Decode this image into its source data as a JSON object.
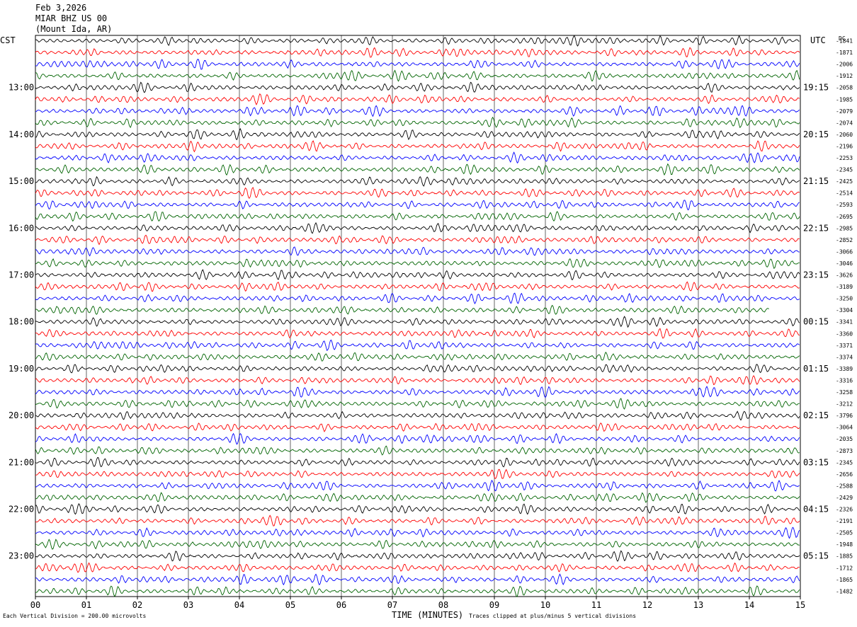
{
  "header": {
    "date": "Feb 3,2026",
    "station": "MIAR BHZ US 00",
    "location": "(Mount Ida, AR)"
  },
  "left_tz": "CST",
  "right_tz": "UTC",
  "right_col_label": "DC",
  "footer": {
    "scale_note": "Each Vertical Division =  200.00 microvolts",
    "clip_note": "Traces clipped at plus/minus 5 vertical divisions"
  },
  "colors": {
    "trace": [
      "#000000",
      "#ff0000",
      "#0000ff",
      "#006400"
    ],
    "grid": "#000000"
  },
  "chart_data": {
    "type": "line",
    "subtype": "helicorder",
    "xlabel": "TIME (MINUTES)",
    "xlim": [
      0,
      15
    ],
    "x_ticks": [
      "00",
      "01",
      "02",
      "03",
      "04",
      "05",
      "06",
      "07",
      "08",
      "09",
      "10",
      "11",
      "12",
      "13",
      "14",
      "15"
    ],
    "grid": true,
    "rows_per_hour": 4,
    "row_count": 48,
    "left_hour_labels": [
      "13:00",
      "14:00",
      "15:00",
      "16:00",
      "17:00",
      "18:00",
      "19:00",
      "20:00",
      "21:00",
      "22:00",
      "23:00"
    ],
    "right_hour_labels": [
      "19:15",
      "20:15",
      "21:15",
      "22:15",
      "23:15",
      "00:15",
      "01:15",
      "02:15",
      "03:15",
      "04:15",
      "05:15"
    ],
    "dc_offsets": [
      "-1841",
      "-1871",
      "-2006",
      "-1912",
      "-2058",
      "-1985",
      "-2079",
      "-2074",
      "-2060",
      "-2196",
      "-2253",
      "-2345",
      "-2425",
      "-2514",
      "-2593",
      "-2695",
      "-2985",
      "-2852",
      "-3066",
      "-3046",
      "-3626",
      "-3189",
      "-3250",
      "-3304",
      "-3341",
      "-3360",
      "-3371",
      "-3374",
      "-3389",
      "-3316",
      "-3258",
      "-3212",
      "-3796",
      "-3064",
      "-2035",
      "-2873",
      "-2345",
      "-2656",
      "-2588",
      "-2429",
      "-2326",
      "-2191",
      "-2505",
      "-1948",
      "-1885",
      "-1712",
      "-1865",
      "-1482"
    ],
    "note": "48 continuous seismic traces, 15 minutes each, colored in repeating black/red/blue/green order; last green trace of 17:00 CST hour ends near minute 14.4"
  }
}
